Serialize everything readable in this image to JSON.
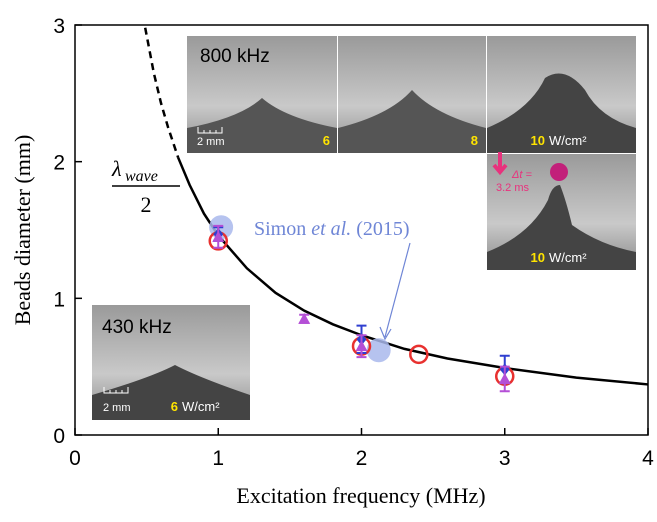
{
  "chart_data": {
    "type": "scatter",
    "xlabel": "Excitation frequency  (MHz)",
    "ylabel": "Beads diameter  (mm)",
    "xlim": [
      0,
      4
    ],
    "xticks": [
      0,
      1,
      2,
      3,
      4
    ],
    "ylim": [
      0,
      3
    ],
    "yticks": [
      0,
      1,
      2,
      3
    ],
    "curve_dashed": {
      "x": [
        0.49,
        0.55,
        0.6,
        0.65,
        0.72
      ],
      "values": [
        2.98,
        2.65,
        2.43,
        2.25,
        2.03
      ]
    },
    "curve_solid": {
      "x": [
        0.72,
        0.8,
        0.9,
        1,
        1.2,
        1.4,
        1.6,
        1.8,
        2,
        2.3,
        2.6,
        3,
        3.5,
        4
      ],
      "values": [
        2.03,
        1.83,
        1.62,
        1.46,
        1.22,
        1.04,
        0.91,
        0.81,
        0.73,
        0.63,
        0.56,
        0.49,
        0.42,
        0.37
      ]
    },
    "curve_label": {
      "lambda": "λ",
      "sub": "wave",
      "denominator": "2"
    },
    "series": [
      {
        "marker": "circle-open",
        "color": "#e8312f",
        "x": [
          1,
          2,
          2.4,
          3
        ],
        "values": [
          1.42,
          0.65,
          0.59,
          0.43
        ]
      },
      {
        "marker": "diamond",
        "color": "#2f3fd0",
        "x": [
          1,
          2,
          3
        ],
        "values": [
          1.47,
          0.7,
          0.48
        ],
        "errors": [
          0.05,
          0.1,
          0.1
        ]
      },
      {
        "marker": "triangle",
        "color": "#b44fd6",
        "x": [
          1,
          1.6,
          2,
          3
        ],
        "values": [
          1.45,
          0.85,
          0.65,
          0.41
        ],
        "errors": [
          0.08,
          0.03,
          0.08,
          0.09
        ]
      },
      {
        "marker": "disc",
        "color": "#a9b9ec",
        "x": [
          1.02,
          2.12
        ],
        "values": [
          1.52,
          0.62
        ]
      }
    ],
    "annotation": {
      "before": "Simon ",
      "italic": "et al.",
      "after": " (2015)"
    },
    "insets": {
      "top_label": "800 kHz",
      "scale": "2 mm",
      "p1": "6",
      "p2": "8",
      "p3": "10",
      "p4": "10",
      "unit": "W/cm²",
      "dt": "Δt =",
      "dt_value": "3.2 ms",
      "bottom_label": "430 kHz",
      "p5": "6"
    }
  }
}
